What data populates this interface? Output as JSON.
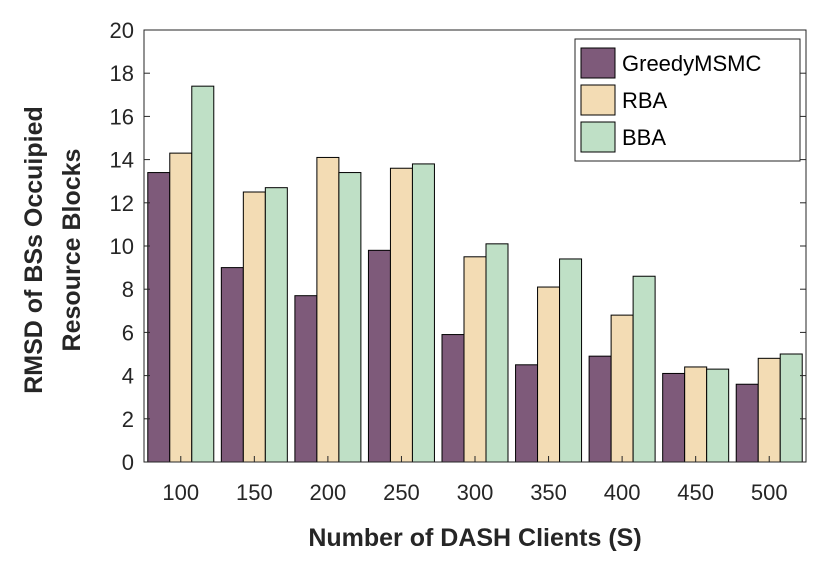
{
  "chart_data": {
    "type": "bar",
    "title": "",
    "xlabel": "Number of DASH Clients (S)",
    "ylabel_lines": [
      "RMSD of BSs Occuipied",
      "Resource Blocks"
    ],
    "categories": [
      "100",
      "150",
      "200",
      "250",
      "300",
      "350",
      "400",
      "450",
      "500"
    ],
    "ylim": [
      0,
      20
    ],
    "yticks": [
      0,
      2,
      4,
      6,
      8,
      10,
      12,
      14,
      16,
      18,
      20
    ],
    "ytick_labels": [
      "0",
      "2",
      "4",
      "6",
      "8",
      "10",
      "12",
      "14",
      "16",
      "18",
      "20"
    ],
    "grid": false,
    "legend_position": "top-right",
    "series": [
      {
        "name": "GreedyMSMC",
        "color": "#7e5a7a",
        "values": [
          13.4,
          9.0,
          7.7,
          9.8,
          5.9,
          4.5,
          4.9,
          4.1,
          3.6
        ]
      },
      {
        "name": "RBA",
        "color": "#f3dcb4",
        "values": [
          14.3,
          12.5,
          14.1,
          13.6,
          9.5,
          8.1,
          6.8,
          4.4,
          4.8
        ]
      },
      {
        "name": "BBA",
        "color": "#bfe0c6",
        "values": [
          17.4,
          12.7,
          13.4,
          13.8,
          10.1,
          9.4,
          8.6,
          4.3,
          5.0
        ]
      }
    ]
  }
}
